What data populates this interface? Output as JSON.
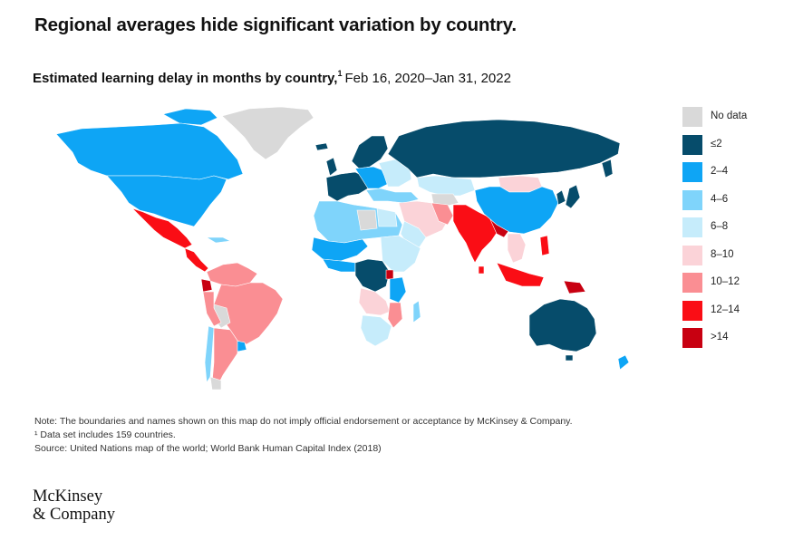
{
  "headline": "Regional averages hide significant variation by country.",
  "subtitle": {
    "title": "Estimated learning delay in months by country,",
    "footnote_marker": "1",
    "date_range": "Feb 16, 2020–Jan 31, 2022"
  },
  "colors": {
    "no_data": "#d9d9d9",
    "le2": "#064c6b",
    "2_4": "#0ea5f5",
    "4_6": "#7fd4fb",
    "6_8": "#c6ecfb",
    "8_10": "#fbd3d8",
    "10_12": "#fa8e93",
    "12_14": "#fa0d15",
    "gt14": "#c80011"
  },
  "legend": [
    {
      "label": "No data",
      "color": "#d9d9d9"
    },
    {
      "label": "≤2",
      "color": "#064c6b"
    },
    {
      "label": "2–4",
      "color": "#0ea5f5"
    },
    {
      "label": "4–6",
      "color": "#7fd4fb"
    },
    {
      "label": "6–8",
      "color": "#c6ecfb"
    },
    {
      "label": "8–10",
      "color": "#fbd3d8"
    },
    {
      "label": "10–12",
      "color": "#fa8e93"
    },
    {
      "label": "12–14",
      "color": "#fa0d15"
    },
    {
      "label": ">14",
      "color": "#c80011"
    }
  ],
  "notes": {
    "boundary": "Note: The boundaries and names shown on this map do not imply official endorsement or acceptance by McKinsey & Company.",
    "footnote": "¹  Data set includes 159 countries.",
    "source": "Source: United Nations map of the world; World Bank Human Capital Index (2018)"
  },
  "logo": {
    "line1": "McKinsey",
    "line2": "& Company"
  }
}
